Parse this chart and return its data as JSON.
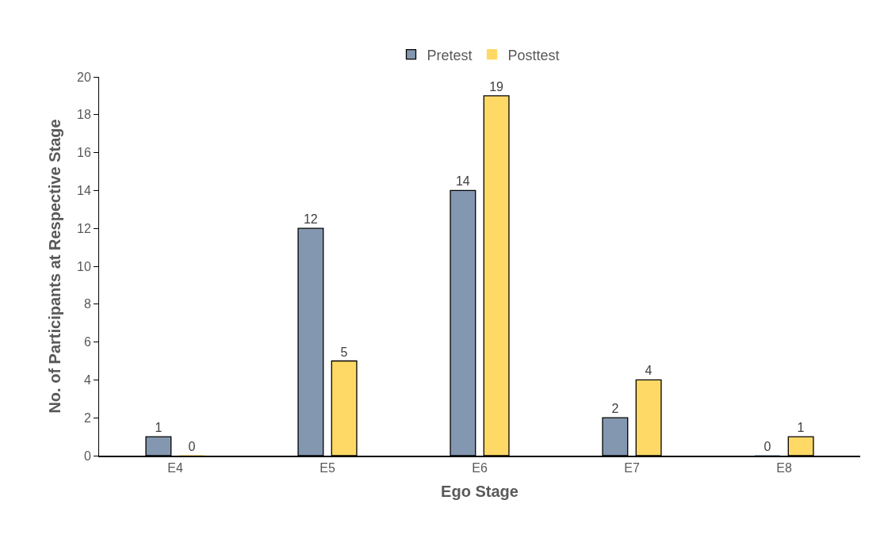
{
  "chart_data": {
    "type": "bar",
    "xlabel": "Ego Stage",
    "ylabel": "No. of Participants at Respective Stage",
    "categories": [
      "E4",
      "E5",
      "E6",
      "E7",
      "E8"
    ],
    "series": [
      {
        "name": "Pretest",
        "color": "#8497b0",
        "values": [
          1,
          12,
          14,
          2,
          0
        ]
      },
      {
        "name": "Posttest",
        "color": "#ffd966",
        "values": [
          0,
          5,
          19,
          4,
          1
        ]
      }
    ],
    "ylim": [
      0,
      20
    ],
    "yticks": [
      0,
      2,
      4,
      6,
      8,
      10,
      12,
      14,
      16,
      18,
      20
    ],
    "legend": "top",
    "data_labels": true
  }
}
